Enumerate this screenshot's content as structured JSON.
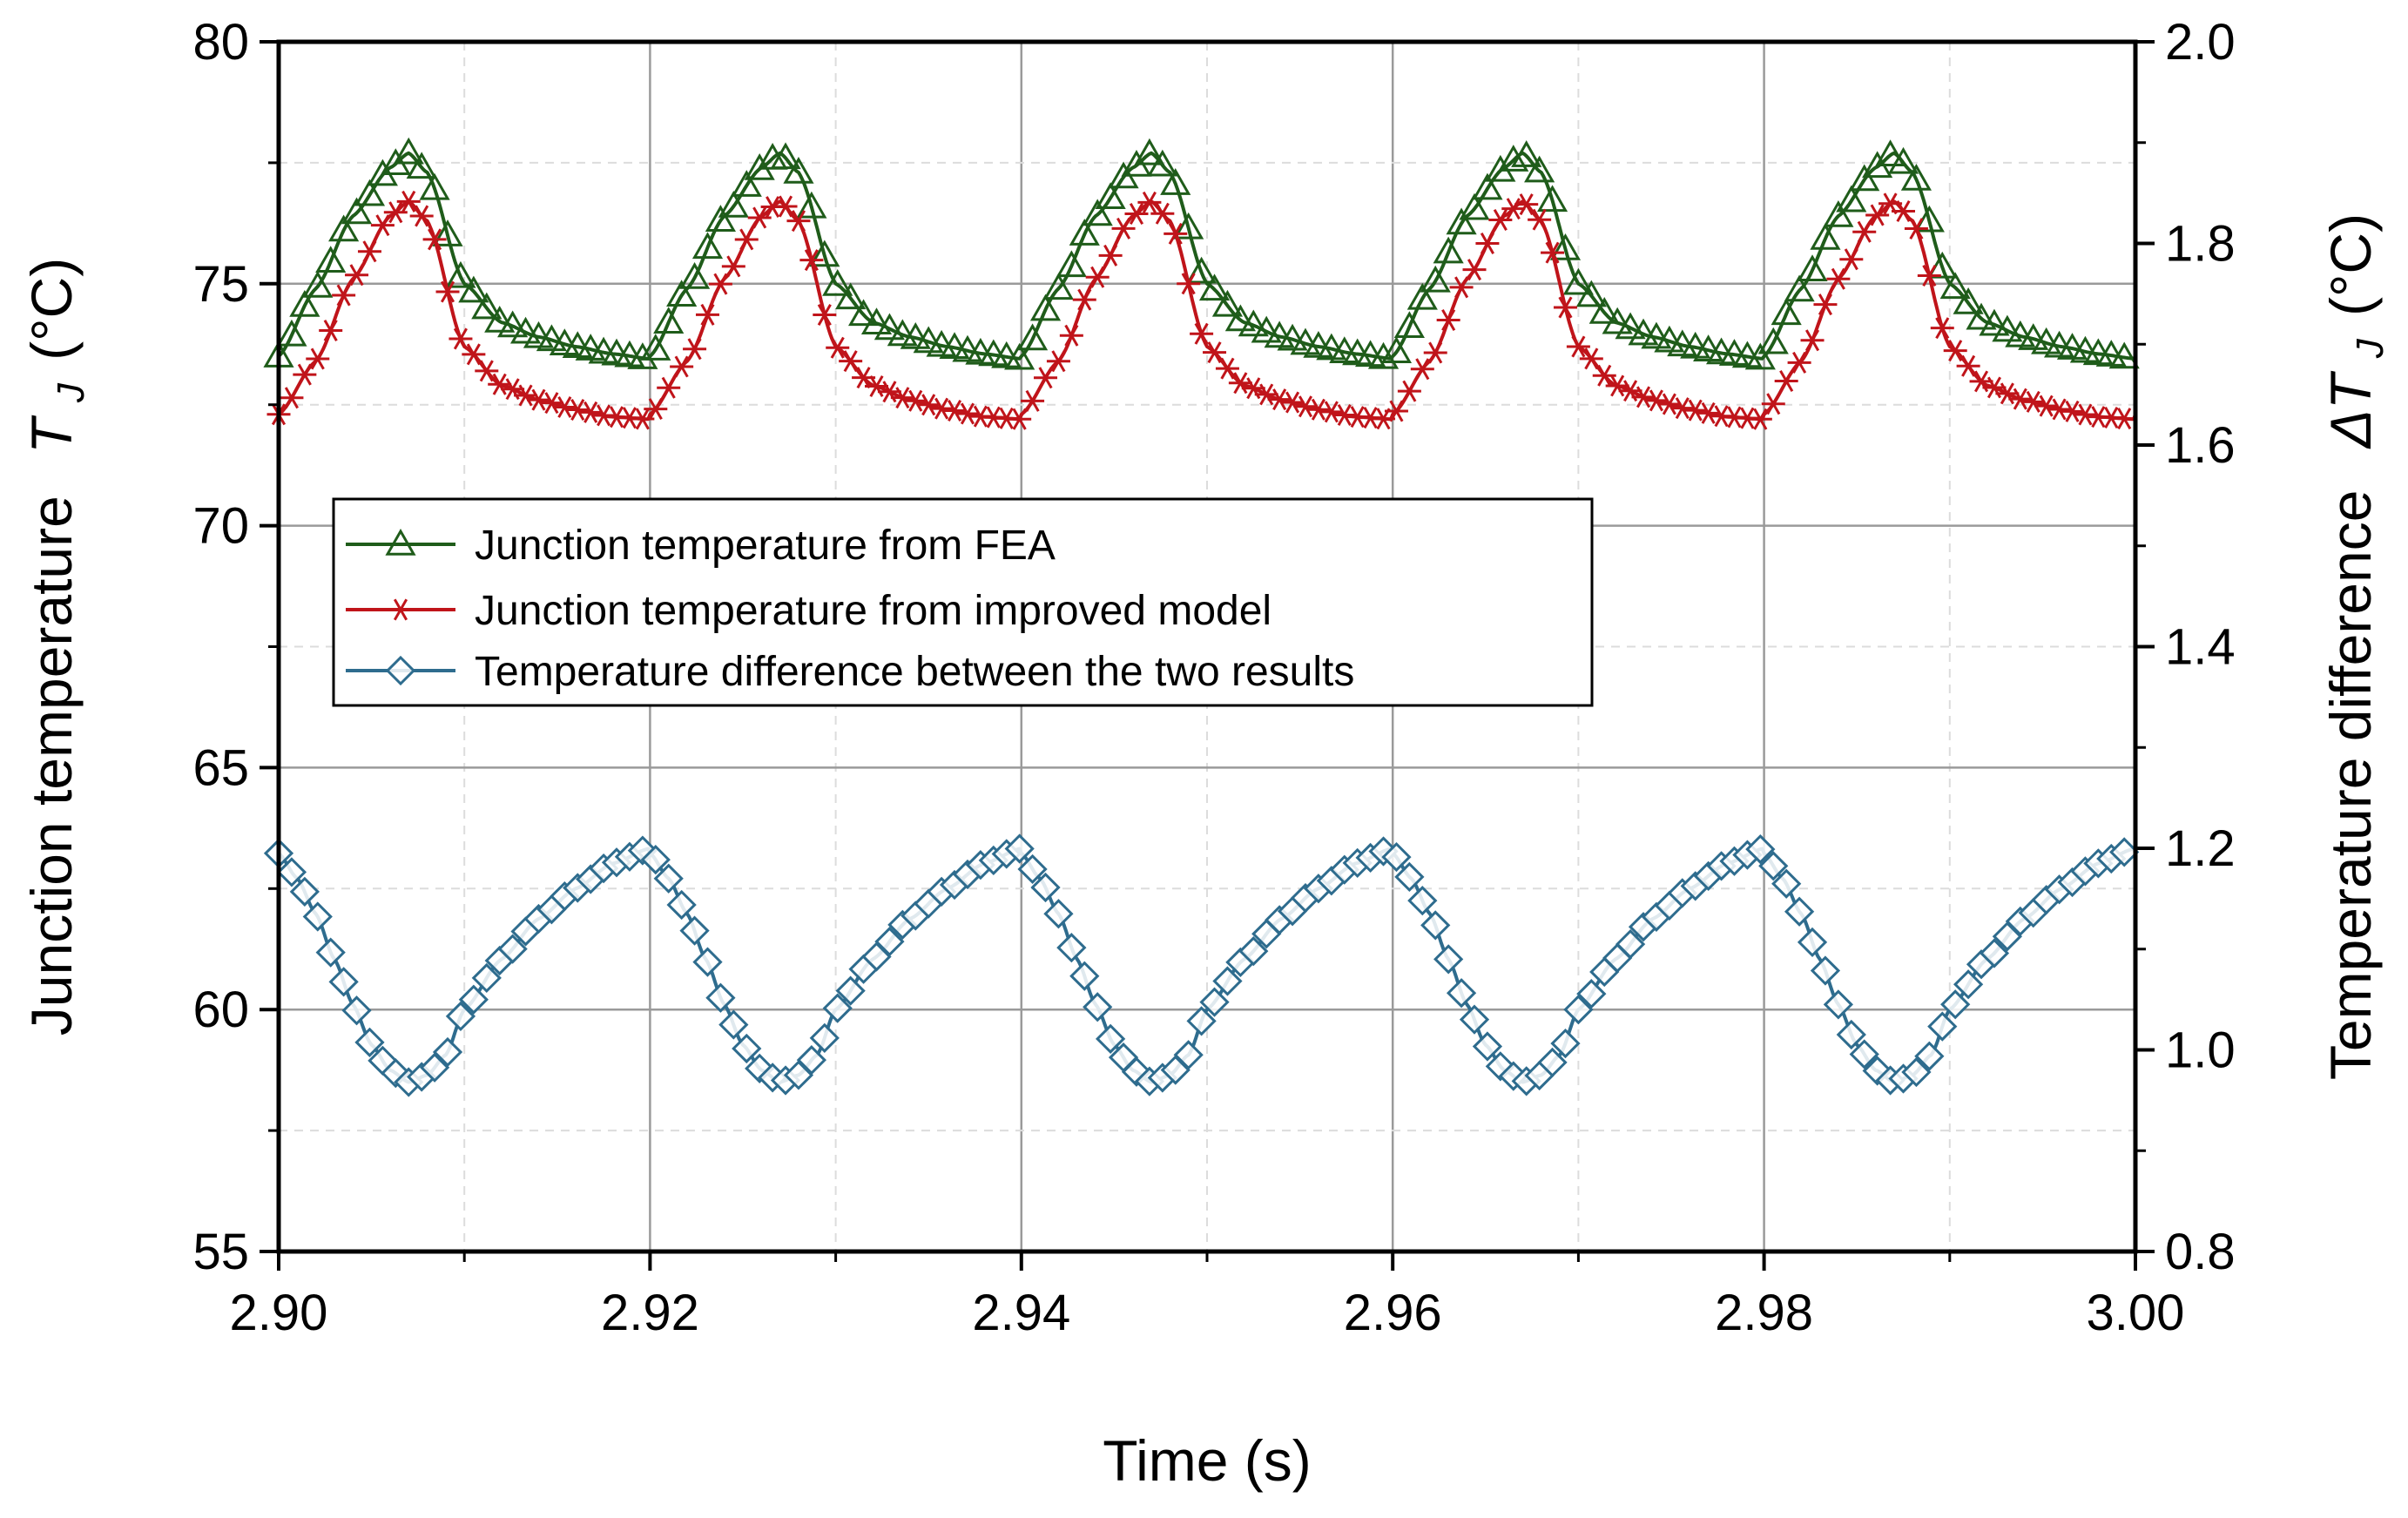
{
  "chart_data": {
    "type": "line",
    "xlabel": "Time (s)",
    "ylabel_left": "Junction temperature",
    "ylabel_left_symbol": "T",
    "ylabel_left_sub": "J",
    "ylabel_left_unit": "(°C)",
    "ylabel_right": "Temperature difference",
    "ylabel_right_symbol": "ΔT",
    "ylabel_right_sub": "J",
    "ylabel_right_unit": "(°C)",
    "xlim": [
      2.9,
      3.0
    ],
    "ylim_left": [
      55,
      80
    ],
    "ylim_right": [
      0.8,
      2.0
    ],
    "x_ticks": [
      "2.90",
      "2.92",
      "2.94",
      "2.96",
      "2.98",
      "3.00"
    ],
    "x_tick_values": [
      2.9,
      2.92,
      2.94,
      2.96,
      2.98,
      3.0
    ],
    "y_left_ticks": [
      "55",
      "60",
      "65",
      "70",
      "75",
      "80"
    ],
    "y_left_tick_values": [
      55,
      60,
      65,
      70,
      75,
      80
    ],
    "y_right_ticks": [
      "0.8",
      "1.0",
      "1.2",
      "1.4",
      "1.6",
      "1.8",
      "2.0"
    ],
    "y_right_tick_values": [
      0.8,
      1.0,
      1.2,
      1.4,
      1.6,
      1.8,
      2.0
    ],
    "grid": true,
    "legend_position": "middle-left",
    "period": 0.02,
    "series": [
      {
        "name": "Junction temperature from FEA",
        "axis": "left",
        "color": "#1f5c1a",
        "marker": "triangle",
        "cycle_t": [
          0,
          0.002,
          0.004,
          0.006,
          0.007,
          0.008,
          0.01,
          0.012,
          0.014,
          0.016,
          0.018,
          0.02
        ],
        "cycle_v": [
          73.5,
          74.9,
          76.4,
          77.4,
          77.7,
          77.3,
          75.0,
          74.2,
          73.9,
          73.7,
          73.55,
          73.45
        ]
      },
      {
        "name": "Junction temperature from improved model",
        "axis": "left",
        "color": "#c0141a",
        "marker": "asterisk",
        "cycle_t": [
          0,
          0.002,
          0.004,
          0.006,
          0.007,
          0.008,
          0.01,
          0.012,
          0.014,
          0.016,
          0.018,
          0.02
        ],
        "cycle_v": [
          72.3,
          73.4,
          75.1,
          76.4,
          76.7,
          76.3,
          73.7,
          72.9,
          72.6,
          72.4,
          72.25,
          72.2
        ]
      },
      {
        "name": "Temperature difference between the two results",
        "axis": "right",
        "color": "#2e6c8e",
        "marker": "diamond",
        "cycle_t": [
          0,
          0.001,
          0.002,
          0.003,
          0.004,
          0.005,
          0.006,
          0.007,
          0.008,
          0.009,
          0.01,
          0.012,
          0.014,
          0.016,
          0.018,
          0.02
        ],
        "cycle_v": [
          1.195,
          1.17,
          1.135,
          1.09,
          1.045,
          1.005,
          0.98,
          0.968,
          0.975,
          0.995,
          1.04,
          1.09,
          1.13,
          1.16,
          1.185,
          1.2
        ]
      }
    ]
  }
}
